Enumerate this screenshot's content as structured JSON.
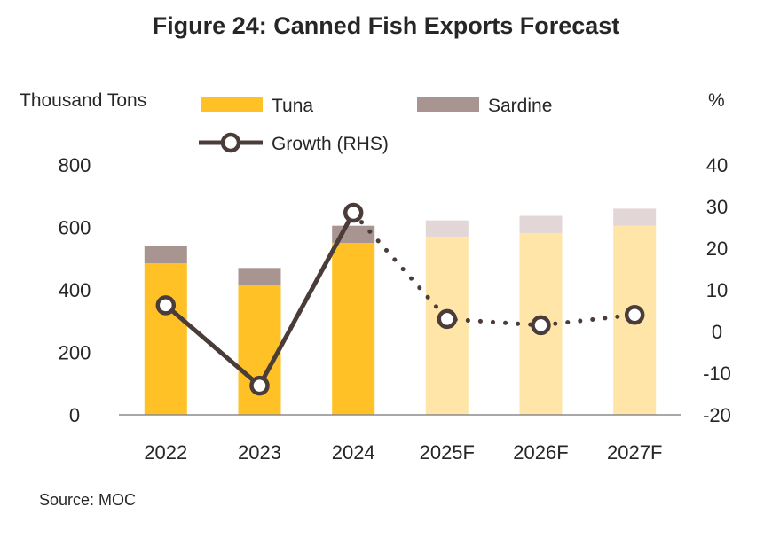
{
  "chart_data": {
    "type": "bar",
    "title": "Figure 24: Canned Fish Exports Forecast",
    "ylabel": "Thousand Tons",
    "ylabel_right": "%",
    "source": "Source: MOC",
    "categories": [
      "2022",
      "2023",
      "2024",
      "2025F",
      "2026F",
      "2027F"
    ],
    "ylim": [
      0,
      800
    ],
    "yticks": [
      "0",
      "200",
      "400",
      "600",
      "800"
    ],
    "ylim_right": [
      -20,
      40
    ],
    "yticks_right": [
      "-20",
      "-10",
      "0",
      "10",
      "20",
      "30",
      "40"
    ],
    "forecast_from_index": 3,
    "stacked": true,
    "legend_position": "top",
    "series": [
      {
        "name": "Tuna",
        "values": [
          485,
          415,
          550,
          570,
          582,
          605
        ],
        "color": "#FFC125",
        "forecast_color": "#FFE6A8"
      },
      {
        "name": "Sardine",
        "values": [
          55,
          55,
          55,
          52,
          55,
          55
        ],
        "color": "#A89490",
        "forecast_color": "#E2D6D6"
      }
    ],
    "line_series": {
      "name": "Growth (RHS)",
      "axis": "right",
      "values": [
        6.3,
        -13.0,
        28.5,
        3.0,
        1.5,
        4.0
      ],
      "color": "#4A3C38",
      "forecast_style": "dotted"
    }
  }
}
